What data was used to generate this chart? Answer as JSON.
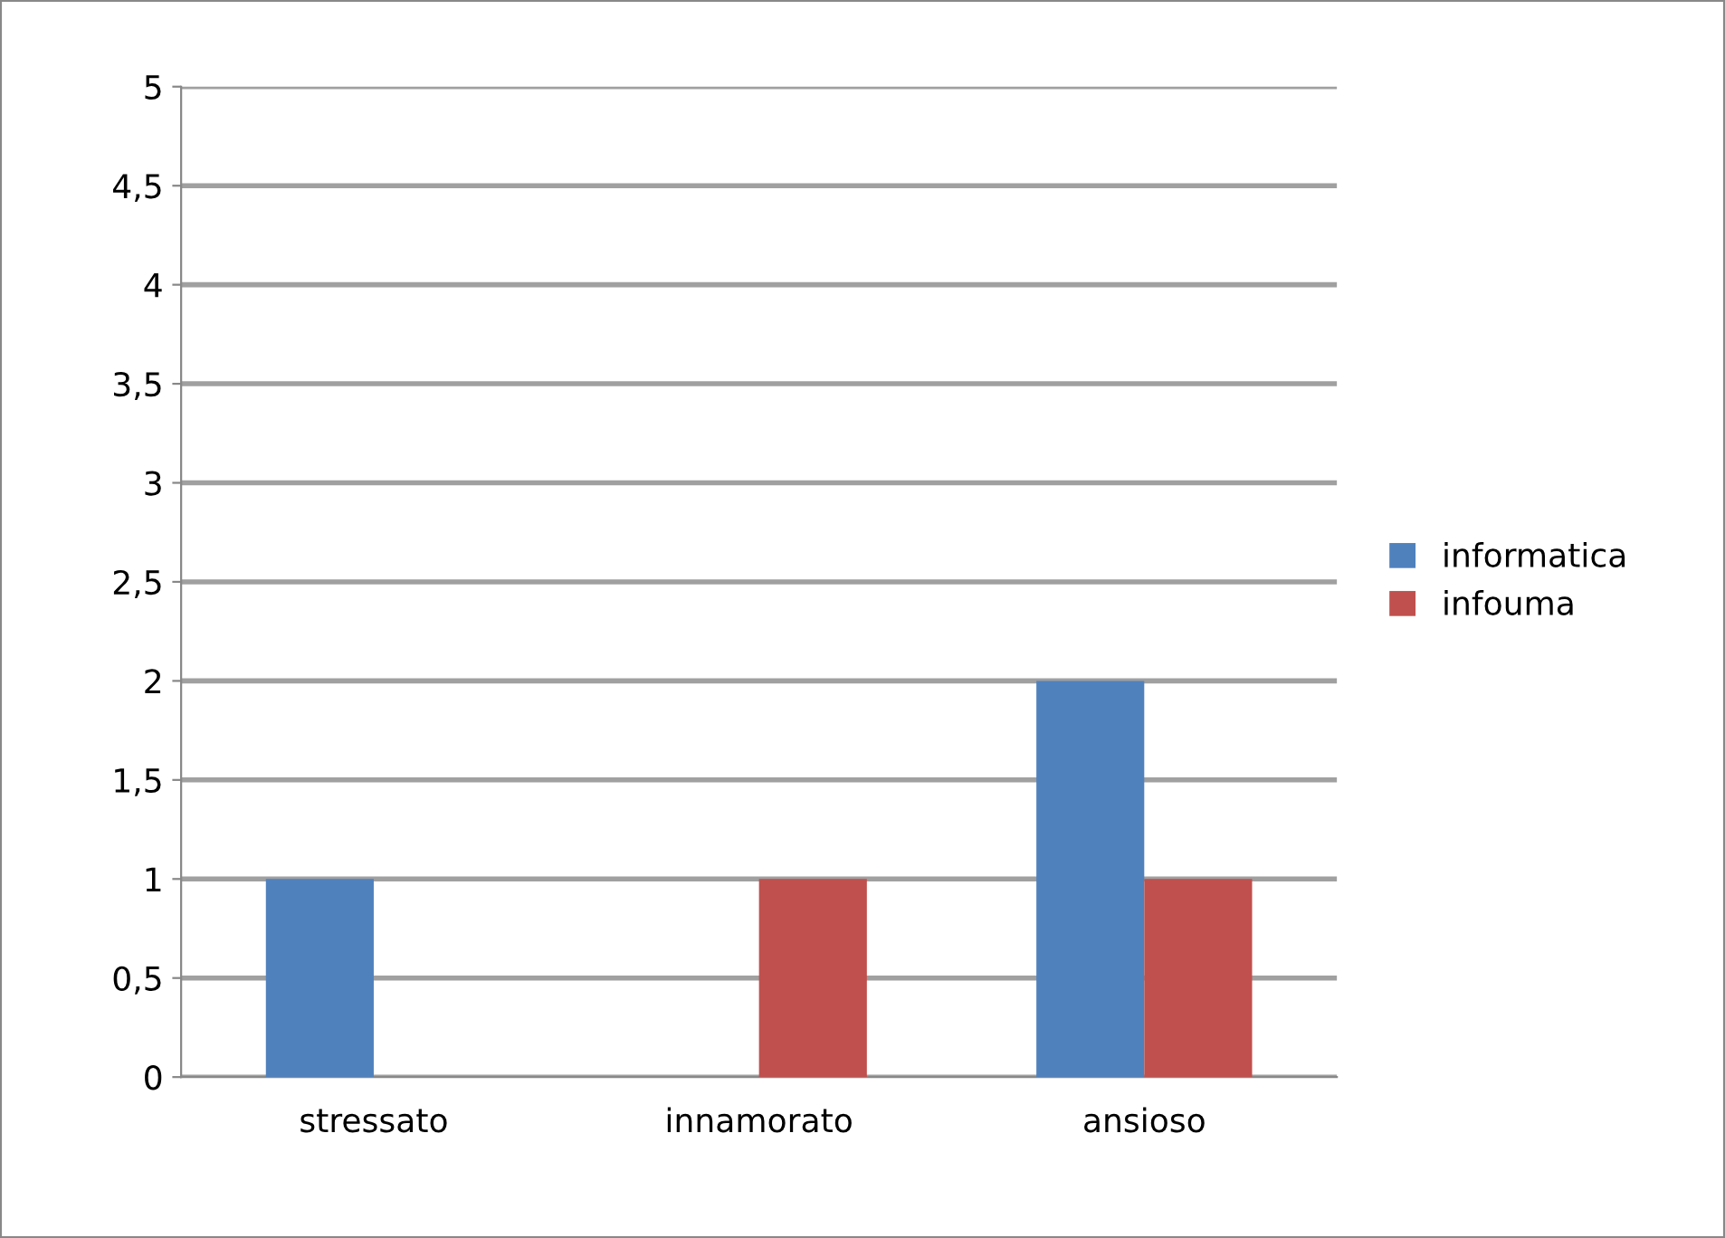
{
  "chart_data": {
    "type": "bar",
    "categories": [
      "stressato",
      "innamorato",
      "ansioso"
    ],
    "series": [
      {
        "name": "informatica",
        "color": "#4f81bd",
        "values": [
          1,
          0,
          2
        ]
      },
      {
        "name": "infouma",
        "color": "#c0504d",
        "values": [
          0,
          1,
          1
        ]
      }
    ],
    "ylim": [
      0,
      5
    ],
    "yticks": [
      0,
      {
        "value": 0.5,
        "label": "0,5"
      },
      1,
      {
        "value": 1.5,
        "label": "1,5"
      },
      2,
      {
        "value": 2.5,
        "label": "2,5"
      },
      3,
      {
        "value": 3.5,
        "label": "3,5"
      },
      4,
      {
        "value": 4.5,
        "label": "4,5"
      },
      5
    ],
    "grid": "y",
    "legend": "right"
  }
}
